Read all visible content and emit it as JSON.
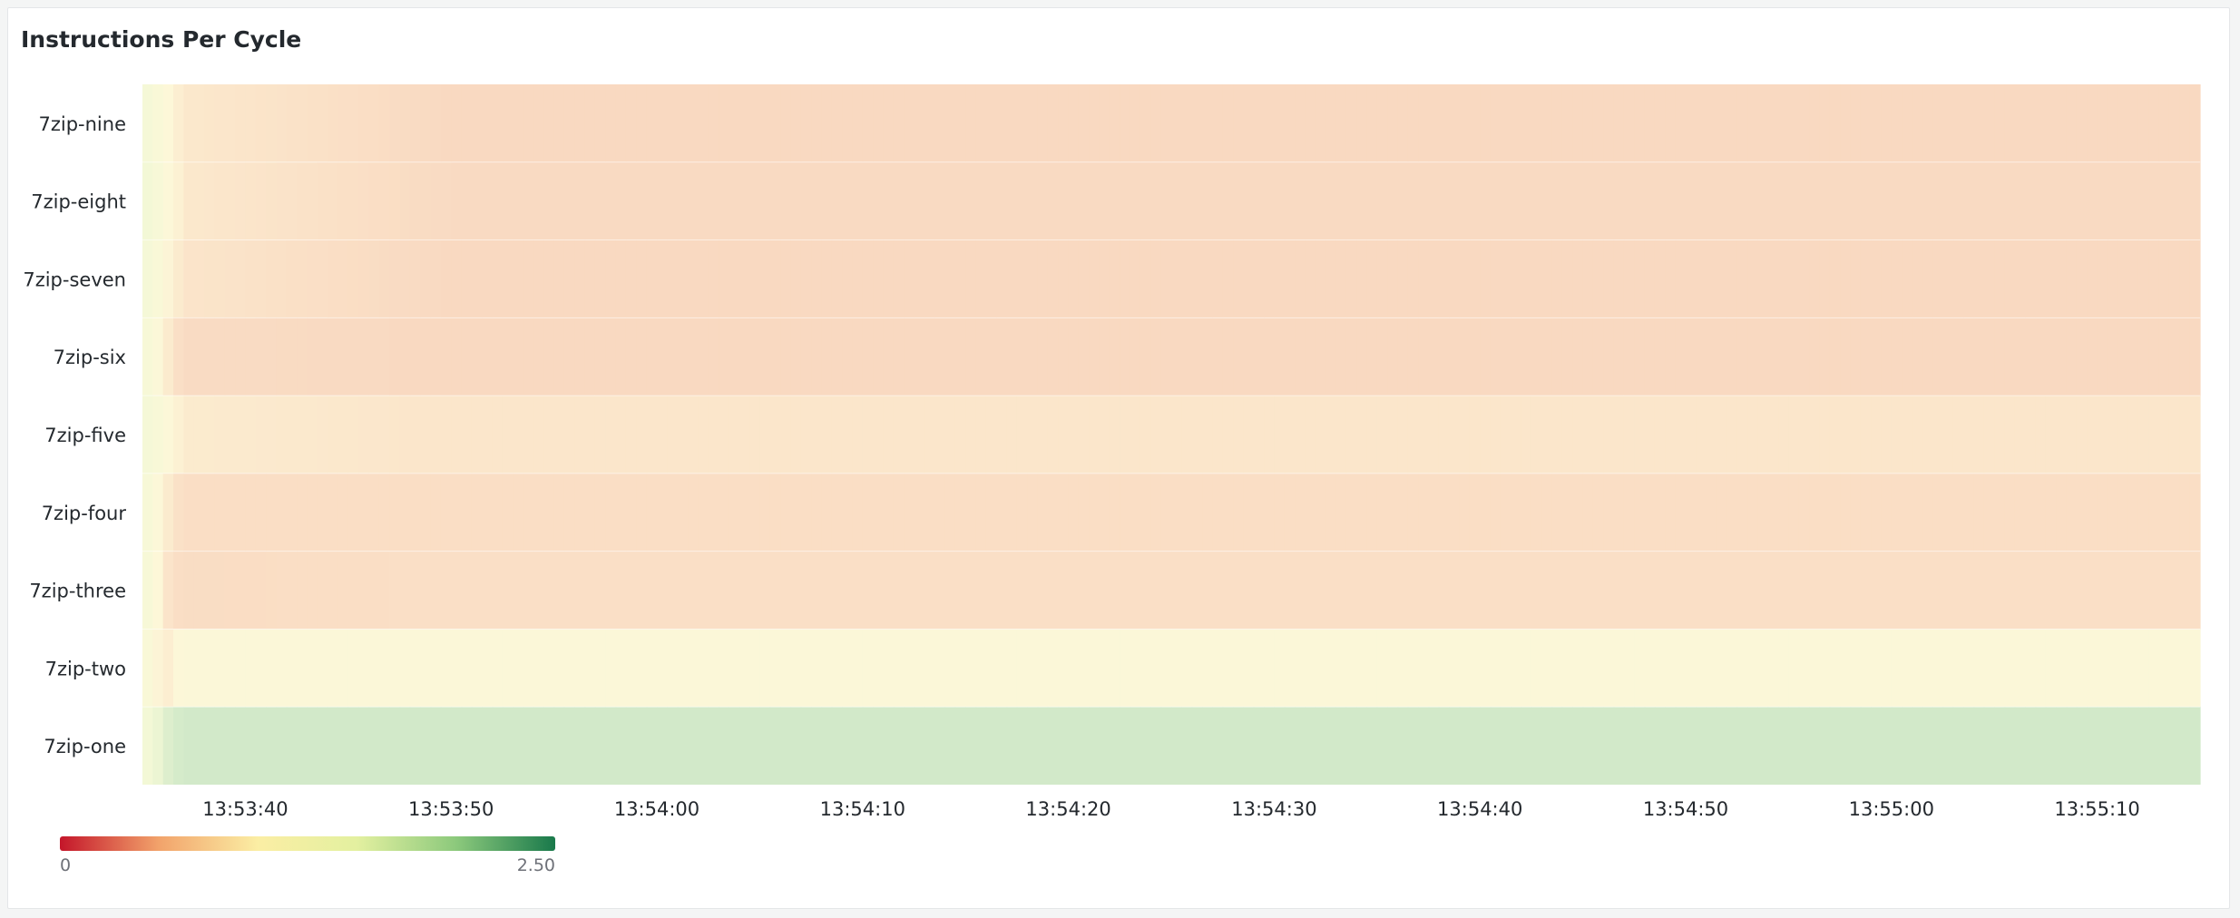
{
  "panel": {
    "title": "Instructions Per Cycle"
  },
  "chart_data": {
    "type": "heatmap",
    "title": "Instructions Per Cycle",
    "xlabel": "",
    "ylabel": "",
    "rows_top_to_bottom": [
      "7zip-nine",
      "7zip-eight",
      "7zip-seven",
      "7zip-six",
      "7zip-five",
      "7zip-four",
      "7zip-three",
      "7zip-two",
      "7zip-one"
    ],
    "x_tick_labels": [
      "13:53:40",
      "13:53:50",
      "13:54:00",
      "13:54:10",
      "13:54:20",
      "13:54:30",
      "13:54:40",
      "13:54:50",
      "13:55:00",
      "13:55:10"
    ],
    "x_range": [
      "13:53:35",
      "13:55:15"
    ],
    "value_range": [
      0,
      2.5
    ],
    "color_scale": [
      "#c4162a",
      "#f2a36b",
      "#fbeea4",
      "#e3f0a0",
      "#8cc97c",
      "#19794b"
    ],
    "legend": {
      "min_label": "0",
      "max_label": "2.50",
      "placement": "bottom-left"
    },
    "grid": true,
    "series_ipc": [
      {
        "name": "7zip-nine",
        "startup_ipc": [
          1.4,
          1.2,
          1.0,
          0.85,
          0.75
        ],
        "steady_ipc": 0.52
      },
      {
        "name": "7zip-eight",
        "startup_ipc": [
          1.5,
          1.3,
          1.05,
          0.9,
          0.75
        ],
        "steady_ipc": 0.54
      },
      {
        "name": "7zip-seven",
        "startup_ipc": [
          1.4,
          1.2,
          0.95,
          0.8,
          0.7
        ],
        "steady_ipc": 0.52
      },
      {
        "name": "7zip-six",
        "startup_ipc": [
          1.3,
          1.1,
          0.8,
          0.62,
          0.56
        ],
        "steady_ipc": 0.52
      },
      {
        "name": "7zip-five",
        "startup_ipc": [
          1.4,
          1.25,
          1.05,
          0.9,
          0.8
        ],
        "steady_ipc": 0.72
      },
      {
        "name": "7zip-four",
        "startup_ipc": [
          1.3,
          1.05,
          0.8,
          0.65,
          0.6
        ],
        "steady_ipc": 0.6
      },
      {
        "name": "7zip-three",
        "startup_ipc": [
          1.3,
          1.0,
          0.7,
          0.6,
          0.58
        ],
        "steady_ipc": 0.62
      },
      {
        "name": "7zip-two",
        "startup_ipc": [
          1.2,
          0.95,
          0.85,
          1.05,
          1.1
        ],
        "steady_ipc": 1.1
      },
      {
        "name": "7zip-one",
        "startup_ipc": [
          1.5,
          1.6,
          1.8,
          1.9,
          1.95
        ],
        "steady_ipc": 1.95
      }
    ]
  }
}
